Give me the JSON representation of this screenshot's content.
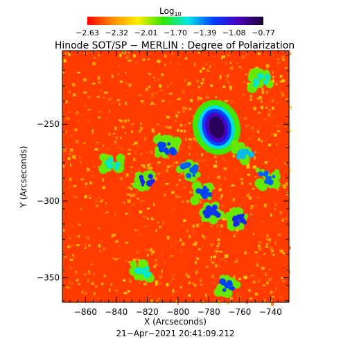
{
  "chart_data": {
    "type": "heatmap",
    "title": "Hinode SOT/SP − MERLIN : Degree of Polarization",
    "colorbar": {
      "label_base": "Log",
      "label_sub": "10",
      "ticks": [
        "−2.63",
        "−2.32",
        "−2.01",
        "−1.70",
        "−1.39",
        "−1.08",
        "−0.77"
      ],
      "range": [
        -2.63,
        -0.77
      ],
      "colors": [
        "#ff0000",
        "#ff8a00",
        "#ffee00",
        "#33e600",
        "#00e6e6",
        "#0040ff",
        "#4a00c0",
        "#1a0030"
      ]
    },
    "xlabel": "X (Arcseconds)",
    "ylabel": "Y (Arcseconds)",
    "xlim": [
      -875,
      -728
    ],
    "ylim": [
      -366,
      -202
    ],
    "xticks": [
      -860,
      -840,
      -820,
      -800,
      -780,
      -760,
      -740
    ],
    "xtick_labels": [
      "−860",
      "−840",
      "−820",
      "−800",
      "−780",
      "−760",
      "−740"
    ],
    "yticks": [
      -250,
      -300,
      -350
    ],
    "ytick_labels": [
      "−250",
      "−300",
      "−350"
    ],
    "timestamp": "21−Apr−2021 20:41:09.212",
    "background_log_value": -2.55,
    "features": [
      {
        "kind": "sunspot-core",
        "x": -775,
        "y": -252,
        "log_value": -0.85
      },
      {
        "kind": "plage",
        "x": -807,
        "y": -265,
        "log_value": -1.3
      },
      {
        "kind": "plage",
        "x": -793,
        "y": -280,
        "log_value": -1.35
      },
      {
        "kind": "plage",
        "x": -783,
        "y": -295,
        "log_value": -1.3
      },
      {
        "kind": "plage",
        "x": -778,
        "y": -307,
        "log_value": -1.25
      },
      {
        "kind": "plage",
        "x": -821,
        "y": -287,
        "log_value": -1.2
      },
      {
        "kind": "plage",
        "x": -757,
        "y": -268,
        "log_value": -1.5
      },
      {
        "kind": "plage",
        "x": -742,
        "y": -285,
        "log_value": -1.35
      },
      {
        "kind": "plage",
        "x": -761,
        "y": -312,
        "log_value": -1.2
      },
      {
        "kind": "plage",
        "x": -768,
        "y": -355,
        "log_value": -1.3
      },
      {
        "kind": "plage",
        "x": -746,
        "y": -221,
        "log_value": -1.6
      },
      {
        "kind": "plage",
        "x": -823,
        "y": -345,
        "log_value": -1.6
      },
      {
        "kind": "plage",
        "x": -843,
        "y": -275,
        "log_value": -1.6
      }
    ]
  }
}
